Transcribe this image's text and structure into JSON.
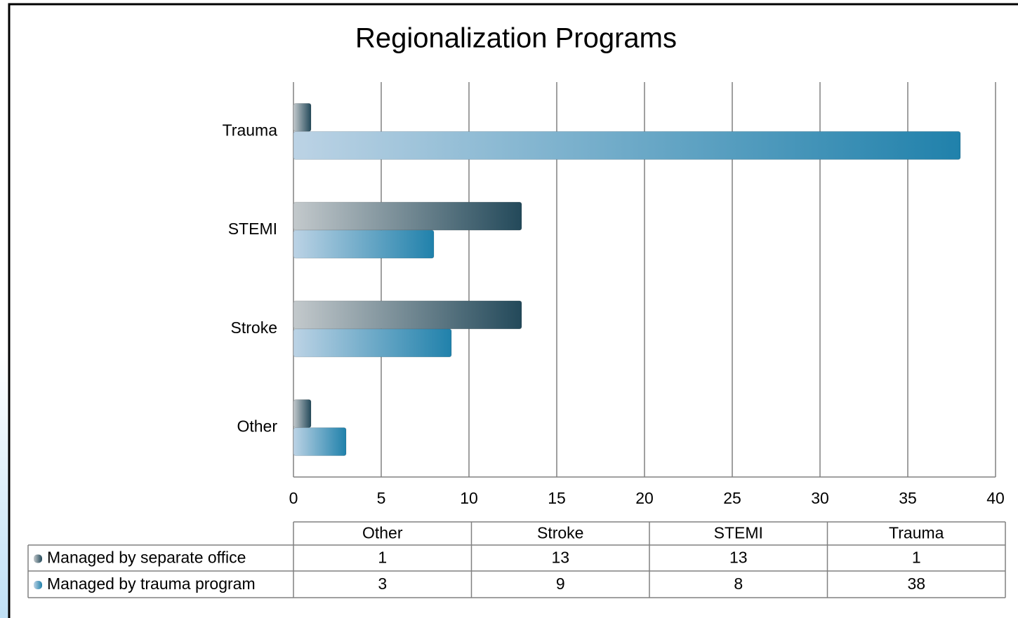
{
  "chart_data": {
    "type": "barh",
    "title": "Regionalization Programs",
    "categories": [
      "Other",
      "Stroke",
      "STEMI",
      "Trauma"
    ],
    "series": [
      {
        "name": "Managed by separate office",
        "color": "#23495a",
        "values": [
          1,
          13,
          13,
          1
        ]
      },
      {
        "name": "Managed by trauma program",
        "color": "#2081ab",
        "values": [
          3,
          9,
          8,
          38
        ]
      }
    ],
    "xlim": [
      0,
      40
    ],
    "xticks": [
      0,
      5,
      10,
      15,
      20,
      25,
      30,
      35,
      40
    ],
    "grid": true,
    "data_table": true
  }
}
